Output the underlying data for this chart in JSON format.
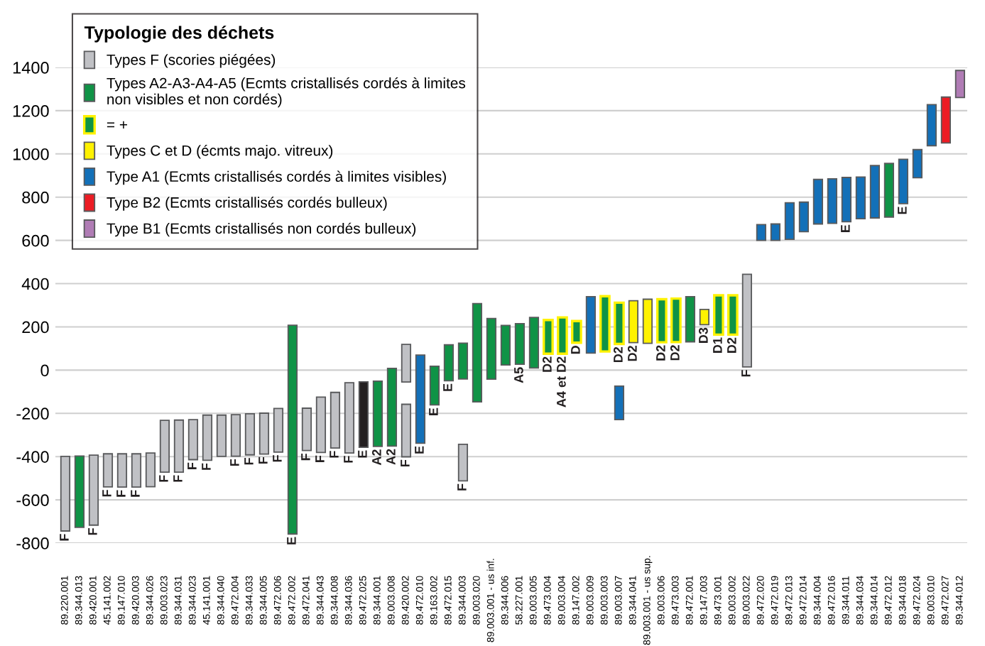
{
  "chart_data": {
    "type": "bar",
    "categories": [
      "89.220.001",
      "89.344.013",
      "89.420.001",
      "45.141.002",
      "89.147.010",
      "89.420.003",
      "89.344.026",
      "89.003.023",
      "89.344.031",
      "89.344.023",
      "45.141.001",
      "89.344.040",
      "89.472.004",
      "89.344.033",
      "89.344.005",
      "89.472.006",
      "89.472.002",
      "89.472.041",
      "89.344.043",
      "89.344.008",
      "89.344.036",
      "89.472.025",
      "89.344.001",
      "89.003.008",
      "89.420.002",
      "89.472.010",
      "89.163.002",
      "89.472.015",
      "89.344.003",
      "89.003.020",
      "89.003.001 - us inf.",
      "89.344.006",
      "58.227.001",
      "89.003.005",
      "89.473.004",
      "89.003.004",
      "89.147.002",
      "89.003.009",
      "89.003.003",
      "89.003.007",
      "89.344.041",
      "89.003.001 - us sup.",
      "89.003.006",
      "89.473.003",
      "89.472.001",
      "89.147.003",
      "89.473.001",
      "89.003.002",
      "89.003.022",
      "89.472.020",
      "89.472.019",
      "89.472.013",
      "89.472.014",
      "89.344.004",
      "89.472.016",
      "89.344.011",
      "89.344.034",
      "89.344.014",
      "89.472.012",
      "89.344.018",
      "89.472.024",
      "89.003.010",
      "89.472.027",
      "89.344.012"
    ],
    "ylim": [
      -800,
      1400
    ],
    "yticks": [
      -800,
      -600,
      -400,
      -200,
      0,
      200,
      400,
      600,
      800,
      1000,
      1200,
      1400
    ],
    "grid": "y",
    "legend": "top left",
    "legend_title": "Typologie des déchets",
    "series": [
      {
        "name": "Types F (scories piégées)",
        "color": "#c0c1c5",
        "base": [
          -744,
          null,
          -717,
          -540,
          -541,
          -541,
          -539,
          -472,
          -472,
          -414,
          -417,
          -399,
          -398,
          -392,
          -388,
          -379,
          null,
          -372,
          -381,
          -360,
          -383,
          null,
          null,
          null,
          -55,
          null,
          null,
          null,
          null,
          null,
          null,
          null,
          null,
          null,
          null,
          null,
          null,
          null,
          null,
          null,
          null,
          null,
          null,
          null,
          null,
          null,
          null,
          null,
          15,
          null,
          null,
          null,
          null,
          null,
          null,
          null,
          null,
          null,
          null,
          null,
          null,
          null,
          null,
          null
        ],
        "values": [
          345,
          null,
          324,
          153,
          154,
          154,
          156,
          240,
          241,
          185,
          209,
          191,
          192,
          190,
          189,
          202,
          null,
          196,
          256,
          257,
          325,
          null,
          null,
          null,
          174,
          null,
          null,
          null,
          null,
          null,
          null,
          null,
          null,
          null,
          null,
          null,
          null,
          null,
          null,
          null,
          null,
          null,
          null,
          null,
          null,
          null,
          null,
          null,
          428,
          null,
          null,
          null,
          null,
          null,
          null,
          null,
          null,
          null,
          null,
          null,
          null,
          null,
          null,
          null
        ],
        "value_labels": [
          "F",
          null,
          "F",
          "F",
          "F",
          "F",
          null,
          "F",
          "F",
          "F",
          "F",
          null,
          "F",
          "F",
          "F",
          "F",
          null,
          "F",
          "F",
          "F",
          "F",
          null,
          null,
          null,
          null,
          null,
          null,
          null,
          null,
          null,
          null,
          null,
          null,
          null,
          null,
          null,
          null,
          null,
          null,
          null,
          null,
          null,
          null,
          null,
          null,
          null,
          null,
          null,
          "F",
          null,
          null,
          null,
          null,
          null,
          null,
          null,
          null,
          null,
          null,
          null,
          null,
          null,
          null,
          null
        ]
      },
      {
        "name": "Types A2-A3-A4-A5 (Ecmts cristallisés cordés à limites\nnon visibles et non cordés)",
        "color": "#0f9346",
        "base": [
          null,
          -727,
          null,
          null,
          null,
          null,
          null,
          null,
          null,
          null,
          null,
          null,
          null,
          null,
          null,
          null,
          -758,
          null,
          null,
          null,
          null,
          null,
          -353,
          -351,
          null,
          null,
          -161,
          -49,
          -41,
          -147,
          -42,
          24,
          27,
          10,
          null,
          null,
          null,
          null,
          null,
          null,
          null,
          null,
          null,
          null,
          131,
          null,
          null,
          null,
          null,
          null,
          null,
          null,
          null,
          null,
          null,
          null,
          null,
          null,
          708,
          null,
          null,
          null,
          null,
          null
        ],
        "values": [
          null,
          330,
          null,
          null,
          null,
          null,
          null,
          null,
          null,
          null,
          null,
          null,
          null,
          null,
          null,
          null,
          966,
          null,
          null,
          null,
          null,
          null,
          302,
          359,
          null,
          null,
          179,
          166,
          166,
          455,
          281,
          183,
          188,
          234,
          null,
          null,
          null,
          null,
          null,
          null,
          null,
          null,
          null,
          null,
          209,
          null,
          null,
          null,
          null,
          null,
          null,
          null,
          null,
          null,
          null,
          null,
          null,
          null,
          248,
          null,
          null,
          null,
          null,
          null
        ],
        "value_labels": [
          null,
          null,
          null,
          null,
          null,
          null,
          null,
          null,
          null,
          null,
          null,
          null,
          null,
          null,
          null,
          null,
          "E",
          null,
          null,
          null,
          null,
          null,
          "A2",
          "A2",
          null,
          null,
          "E",
          "E",
          null,
          null,
          null,
          null,
          "A5",
          null,
          null,
          null,
          null,
          null,
          null,
          null,
          null,
          null,
          null,
          null,
          null,
          null,
          null,
          null,
          null,
          null,
          null,
          null,
          null,
          null,
          null,
          null,
          null,
          null,
          null,
          null,
          null,
          null,
          null,
          null
        ]
      },
      {
        "name": "= +",
        "color": "#0f9346",
        "base": [
          null,
          null,
          null,
          null,
          null,
          null,
          null,
          null,
          null,
          null,
          null,
          null,
          null,
          null,
          null,
          null,
          null,
          null,
          null,
          null,
          null,
          null,
          null,
          null,
          null,
          null,
          null,
          null,
          null,
          null,
          null,
          null,
          null,
          null,
          76,
          76,
          127,
          null,
          86,
          121,
          null,
          null,
          129,
          130,
          null,
          null,
          164,
          164,
          null,
          null,
          null,
          null,
          null,
          null,
          null,
          null,
          null,
          null,
          null,
          null,
          null,
          null,
          null,
          null
        ],
        "values": [
          null,
          null,
          null,
          null,
          null,
          null,
          null,
          null,
          null,
          null,
          null,
          null,
          null,
          null,
          null,
          null,
          null,
          null,
          null,
          null,
          null,
          null,
          null,
          null,
          null,
          null,
          null,
          null,
          null,
          null,
          null,
          null,
          null,
          null,
          156,
          168,
          100,
          null,
          256,
          191,
          null,
          null,
          199,
          201,
          null,
          null,
          182,
          182,
          null,
          null,
          null,
          null,
          null,
          null,
          null,
          null,
          null,
          null,
          null,
          null,
          null,
          null,
          null,
          null
        ],
        "value_labels": [
          null,
          null,
          null,
          null,
          null,
          null,
          null,
          null,
          null,
          null,
          null,
          null,
          null,
          null,
          null,
          null,
          null,
          null,
          null,
          null,
          null,
          null,
          null,
          null,
          null,
          null,
          null,
          null,
          null,
          null,
          null,
          null,
          null,
          null,
          "D2",
          "A4 et D2",
          "D",
          null,
          null,
          "D2",
          null,
          null,
          "D2",
          "D2",
          null,
          null,
          "D1",
          "D2",
          null,
          null,
          null,
          null,
          null,
          null,
          null,
          null,
          null,
          null,
          null,
          null,
          null,
          null,
          null,
          null
        ]
      },
      {
        "name": "Types C et D (écmts majo. vitreux)",
        "color": "#fff200",
        "base": [
          null,
          null,
          null,
          null,
          null,
          null,
          null,
          null,
          null,
          null,
          null,
          null,
          null,
          null,
          null,
          null,
          null,
          null,
          null,
          null,
          null,
          null,
          null,
          null,
          null,
          null,
          null,
          null,
          null,
          null,
          null,
          null,
          null,
          null,
          null,
          null,
          null,
          null,
          null,
          null,
          127,
          124,
          null,
          null,
          null,
          210,
          null,
          null,
          null,
          null,
          null,
          null,
          null,
          null,
          null,
          null,
          null,
          null,
          null,
          null,
          null,
          null,
          null,
          null
        ],
        "values": [
          null,
          null,
          null,
          null,
          null,
          null,
          null,
          null,
          null,
          null,
          null,
          null,
          null,
          null,
          null,
          null,
          null,
          null,
          null,
          null,
          null,
          null,
          null,
          null,
          null,
          null,
          null,
          null,
          null,
          null,
          null,
          null,
          null,
          null,
          null,
          null,
          null,
          null,
          null,
          null,
          194,
          204,
          null,
          null,
          null,
          71,
          null,
          null,
          null,
          null,
          null,
          null,
          null,
          null,
          null,
          null,
          null,
          null,
          null,
          null,
          null,
          null,
          null,
          null
        ],
        "value_labels": [
          null,
          null,
          null,
          null,
          null,
          null,
          null,
          null,
          null,
          null,
          null,
          null,
          null,
          null,
          null,
          null,
          null,
          null,
          null,
          null,
          null,
          null,
          null,
          null,
          null,
          null,
          null,
          null,
          null,
          null,
          null,
          null,
          null,
          null,
          null,
          null,
          null,
          null,
          null,
          null,
          "D2",
          null,
          null,
          null,
          null,
          "D3",
          null,
          null,
          null,
          null,
          null,
          null,
          null,
          null,
          null,
          null,
          null,
          null,
          null,
          null,
          null,
          null,
          null,
          null
        ]
      },
      {
        "name": "Type A1 (Ecmts cristallisés cordés à limites visibles)",
        "color": "#1370b8",
        "base": [
          null,
          null,
          null,
          null,
          null,
          null,
          null,
          null,
          null,
          null,
          null,
          null,
          null,
          null,
          null,
          null,
          null,
          null,
          null,
          null,
          null,
          null,
          null,
          null,
          null,
          -338,
          null,
          null,
          null,
          null,
          null,
          null,
          null,
          null,
          null,
          null,
          null,
          79,
          null,
          null,
          null,
          null,
          null,
          null,
          null,
          null,
          null,
          null,
          null,
          600,
          600,
          605,
          640,
          676,
          679,
          686,
          700,
          704,
          null,
          770,
          890,
          1038,
          null,
          null
        ],
        "values": [
          null,
          null,
          null,
          null,
          null,
          null,
          null,
          null,
          null,
          null,
          null,
          null,
          null,
          null,
          null,
          null,
          null,
          null,
          null,
          null,
          null,
          null,
          null,
          null,
          null,
          408,
          null,
          null,
          null,
          null,
          null,
          null,
          null,
          null,
          null,
          null,
          null,
          261,
          null,
          null,
          null,
          null,
          null,
          null,
          null,
          null,
          null,
          null,
          null,
          73,
          76,
          169,
          137,
          206,
          206,
          205,
          193,
          242,
          null,
          205,
          130,
          190,
          null,
          null
        ],
        "value_labels": [
          null,
          null,
          null,
          null,
          null,
          null,
          null,
          null,
          null,
          null,
          null,
          null,
          null,
          null,
          null,
          null,
          null,
          null,
          null,
          null,
          null,
          null,
          null,
          null,
          null,
          "E",
          null,
          null,
          null,
          null,
          null,
          null,
          null,
          null,
          null,
          null,
          null,
          null,
          null,
          null,
          null,
          null,
          null,
          null,
          null,
          null,
          null,
          null,
          null,
          null,
          null,
          null,
          null,
          null,
          null,
          "E",
          null,
          null,
          null,
          "E",
          null,
          null,
          null,
          null
        ]
      },
      {
        "name": "Type B2 (Ecmts cristallisés cordés bulleux)",
        "color": "#ec1c24",
        "base": [
          null,
          null,
          null,
          null,
          null,
          null,
          null,
          null,
          null,
          null,
          null,
          null,
          null,
          null,
          null,
          null,
          null,
          null,
          null,
          null,
          null,
          null,
          null,
          null,
          null,
          null,
          null,
          null,
          null,
          null,
          null,
          null,
          null,
          null,
          null,
          null,
          null,
          null,
          null,
          null,
          null,
          null,
          null,
          null,
          null,
          null,
          null,
          null,
          null,
          null,
          null,
          null,
          null,
          null,
          null,
          null,
          null,
          null,
          null,
          null,
          null,
          null,
          1051,
          null
        ],
        "values": [
          null,
          null,
          null,
          null,
          null,
          null,
          null,
          null,
          null,
          null,
          null,
          null,
          null,
          null,
          null,
          null,
          null,
          null,
          null,
          null,
          null,
          null,
          null,
          null,
          null,
          null,
          null,
          null,
          null,
          null,
          null,
          null,
          null,
          null,
          null,
          null,
          null,
          null,
          null,
          null,
          null,
          null,
          null,
          null,
          null,
          null,
          null,
          null,
          null,
          null,
          null,
          null,
          null,
          null,
          null,
          null,
          null,
          null,
          null,
          null,
          null,
          null,
          212,
          null
        ]
      },
      {
        "name": "Type B1 (Ecmts cristallisés non cordés bulleux)",
        "color": "#b07cb5",
        "base": [
          null,
          null,
          null,
          null,
          null,
          null,
          null,
          null,
          null,
          null,
          null,
          null,
          null,
          null,
          null,
          null,
          null,
          null,
          null,
          null,
          null,
          null,
          null,
          null,
          null,
          null,
          null,
          null,
          null,
          null,
          null,
          null,
          null,
          null,
          null,
          null,
          null,
          null,
          null,
          null,
          null,
          null,
          null,
          null,
          null,
          null,
          null,
          null,
          null,
          null,
          null,
          null,
          null,
          null,
          null,
          null,
          null,
          null,
          null,
          null,
          null,
          null,
          null,
          1261
        ],
        "values": [
          null,
          null,
          null,
          null,
          null,
          null,
          null,
          null,
          null,
          null,
          null,
          null,
          null,
          null,
          null,
          null,
          null,
          null,
          null,
          null,
          null,
          null,
          null,
          null,
          null,
          null,
          null,
          null,
          null,
          null,
          null,
          null,
          null,
          null,
          null,
          null,
          null,
          null,
          null,
          null,
          null,
          null,
          null,
          null,
          null,
          null,
          null,
          null,
          null,
          null,
          null,
          null,
          null,
          null,
          null,
          null,
          null,
          null,
          null,
          null,
          null,
          null,
          null,
          125
        ]
      },
      {
        "color": "#c0c1c5",
        "base": [
          null,
          null,
          null,
          null,
          null,
          null,
          null,
          null,
          null,
          null,
          null,
          null,
          null,
          null,
          null,
          null,
          null,
          null,
          null,
          null,
          null,
          null,
          null,
          null,
          -401,
          null,
          null,
          null,
          -512,
          null,
          null,
          null,
          null,
          null,
          null,
          null,
          null,
          null,
          null,
          null,
          null,
          null,
          null,
          null,
          null,
          null,
          null,
          null,
          null,
          null,
          null,
          null,
          null,
          null,
          null,
          null,
          null,
          null,
          null,
          null,
          null,
          null,
          null,
          null
        ],
        "values": [
          null,
          null,
          null,
          null,
          null,
          null,
          null,
          null,
          null,
          null,
          null,
          null,
          null,
          null,
          null,
          null,
          null,
          null,
          null,
          null,
          null,
          null,
          null,
          null,
          243,
          null,
          null,
          null,
          169,
          null,
          null,
          null,
          null,
          null,
          null,
          null,
          null,
          null,
          null,
          null,
          null,
          null,
          null,
          null,
          null,
          null,
          null,
          null,
          null,
          null,
          null,
          null,
          null,
          null,
          null,
          null,
          null,
          null,
          null,
          null,
          null,
          null,
          null,
          null
        ],
        "value_labels": [
          null,
          null,
          null,
          null,
          null,
          null,
          null,
          null,
          null,
          null,
          null,
          null,
          null,
          null,
          null,
          null,
          null,
          null,
          null,
          null,
          null,
          null,
          null,
          null,
          "F",
          null,
          null,
          null,
          "F",
          null,
          null,
          null,
          null,
          null,
          null,
          null,
          null,
          null,
          null,
          null,
          null,
          null,
          null,
          null,
          null,
          null,
          null,
          null,
          null,
          null,
          null,
          null,
          null,
          null,
          null,
          null,
          null,
          null,
          null,
          null,
          null,
          null,
          null,
          null
        ]
      },
      {
        "color": "#1370b8",
        "base": [
          null,
          null,
          null,
          null,
          null,
          null,
          null,
          null,
          null,
          null,
          null,
          null,
          null,
          null,
          null,
          null,
          null,
          null,
          null,
          null,
          null,
          null,
          null,
          null,
          null,
          null,
          null,
          null,
          null,
          null,
          null,
          null,
          null,
          null,
          null,
          null,
          null,
          null,
          null,
          -229,
          null,
          null,
          null,
          null,
          null,
          null,
          null,
          null,
          null,
          null,
          null,
          null,
          null,
          null,
          null,
          null,
          null,
          null,
          null,
          null,
          null,
          null,
          null,
          null
        ],
        "values": [
          null,
          null,
          null,
          null,
          null,
          null,
          null,
          null,
          null,
          null,
          null,
          null,
          null,
          null,
          null,
          null,
          null,
          null,
          null,
          null,
          null,
          null,
          null,
          null,
          null,
          null,
          null,
          null,
          null,
          null,
          null,
          null,
          null,
          null,
          null,
          null,
          null,
          null,
          null,
          155,
          null,
          null,
          null,
          null,
          null,
          null,
          null,
          null,
          null,
          null,
          null,
          null,
          null,
          null,
          null,
          null,
          null,
          null,
          null,
          null,
          null,
          null,
          null,
          null
        ]
      },
      {
        "color": "#231f20",
        "base": [
          null,
          null,
          null,
          null,
          null,
          null,
          null,
          null,
          null,
          null,
          null,
          null,
          null,
          null,
          null,
          null,
          null,
          null,
          null,
          null,
          null,
          -357,
          null,
          null,
          null,
          null,
          null,
          null,
          null,
          null,
          null,
          null,
          null,
          null,
          null,
          null,
          null,
          null,
          null,
          null,
          null,
          null,
          null,
          null,
          null,
          null,
          null,
          null,
          null,
          null,
          null,
          null,
          null,
          null,
          null,
          null,
          null,
          null,
          null,
          null,
          null,
          null,
          null,
          null
        ],
        "values": [
          null,
          null,
          null,
          null,
          null,
          null,
          null,
          null,
          null,
          null,
          null,
          null,
          null,
          null,
          null,
          null,
          null,
          null,
          null,
          null,
          null,
          303,
          null,
          null,
          null,
          null,
          null,
          null,
          null,
          null,
          null,
          null,
          null,
          null,
          null,
          null,
          null,
          null,
          null,
          null,
          null,
          null,
          null,
          null,
          null,
          null,
          null,
          null,
          null,
          null,
          null,
          null,
          null,
          null,
          null,
          null,
          null,
          null,
          null,
          null,
          null,
          null,
          null,
          null
        ],
        "value_labels": [
          null,
          null,
          null,
          null,
          null,
          null,
          null,
          null,
          null,
          null,
          null,
          null,
          null,
          null,
          null,
          null,
          null,
          null,
          null,
          null,
          null,
          "E",
          null,
          null,
          null,
          null,
          null,
          null,
          null,
          null,
          null,
          null,
          null,
          null,
          null,
          null,
          null,
          null,
          null,
          null,
          null,
          null,
          null,
          null,
          null,
          null,
          null,
          null,
          null,
          null,
          null,
          null,
          null,
          null,
          null,
          null,
          null,
          null,
          null,
          null,
          null,
          null,
          null,
          null
        ]
      }
    ]
  }
}
